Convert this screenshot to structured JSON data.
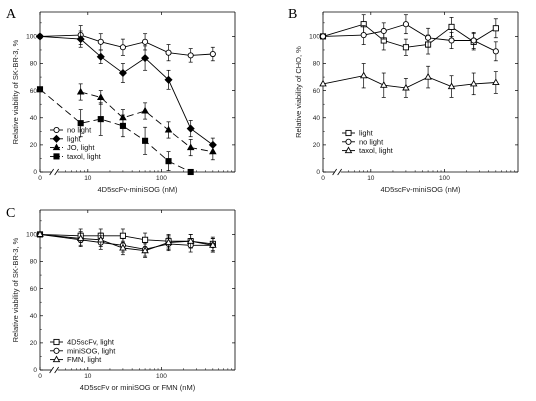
{
  "chart_data": [
    {
      "panel": "A",
      "type": "line",
      "xlabel": "4D5scFv-miniSOG (nM)",
      "ylabel": "Relative viability of SK-BR-3, %",
      "x_ticks": [
        0,
        10,
        100
      ],
      "y_ticks": [
        0,
        20,
        40,
        60,
        80,
        100
      ],
      "ylim": [
        0,
        118
      ],
      "x_scale": "log with axis break",
      "legend_position": "bottom-left",
      "series": [
        {
          "name": "no light",
          "marker": "open-circle",
          "line": "solid",
          "x": [
            0,
            8,
            15,
            30,
            60,
            125,
            250,
            500
          ],
          "y": [
            100,
            101,
            96,
            92,
            96,
            88,
            86,
            87
          ],
          "err": [
            0,
            7,
            6,
            6,
            6,
            6,
            5,
            5
          ]
        },
        {
          "name": "light",
          "marker": "filled-diamond",
          "line": "solid",
          "x": [
            0,
            8,
            15,
            30,
            60,
            125,
            250,
            500
          ],
          "y": [
            100,
            98,
            85,
            73,
            84,
            68,
            32,
            20
          ],
          "err": [
            0,
            6,
            5,
            7,
            9,
            7,
            6,
            5
          ]
        },
        {
          "name": "JO, light",
          "marker": "filled-triangle",
          "line": "dashed",
          "x": [
            8,
            15,
            30,
            60,
            125,
            250,
            500
          ],
          "y": [
            59,
            55,
            40,
            45,
            31,
            18,
            15
          ],
          "err": [
            6,
            5,
            6,
            6,
            6,
            6,
            6
          ]
        },
        {
          "name": "taxol, light",
          "marker": "filled-square",
          "line": "dashed",
          "x": [
            0,
            8,
            15,
            30,
            60,
            125,
            250
          ],
          "y": [
            61,
            36,
            39,
            34,
            23,
            8,
            0
          ],
          "err": [
            0,
            10,
            12,
            8,
            10,
            7,
            0
          ]
        }
      ]
    },
    {
      "panel": "B",
      "type": "line",
      "xlabel": "4D5scFv-miniSOG (nM)",
      "ylabel": "Relative viability of CHO, %",
      "x_ticks": [
        0,
        10,
        100
      ],
      "y_ticks": [
        0,
        20,
        40,
        60,
        80,
        100
      ],
      "ylim": [
        0,
        118
      ],
      "x_scale": "log with axis break",
      "legend_position": "bottom-left",
      "series": [
        {
          "name": "light",
          "marker": "open-square",
          "line": "solid",
          "x": [
            0,
            8,
            15,
            30,
            60,
            125,
            250,
            500
          ],
          "y": [
            100,
            109,
            97,
            92,
            94,
            107,
            96,
            106
          ],
          "err": [
            0,
            7,
            7,
            6,
            7,
            7,
            6,
            7
          ]
        },
        {
          "name": "no light",
          "marker": "open-circle",
          "line": "solid",
          "x": [
            0,
            8,
            15,
            30,
            60,
            125,
            250,
            500
          ],
          "y": [
            100,
            101,
            104,
            109,
            99,
            97,
            97,
            89
          ],
          "err": [
            0,
            7,
            6,
            7,
            7,
            6,
            6,
            7
          ]
        },
        {
          "name": "taxol, light",
          "marker": "open-triangle",
          "line": "solid",
          "x": [
            0,
            8,
            15,
            30,
            60,
            125,
            250,
            500
          ],
          "y": [
            65,
            71,
            64,
            62,
            70,
            63,
            65,
            66
          ],
          "err": [
            0,
            9,
            9,
            7,
            8,
            8,
            8,
            8
          ]
        }
      ]
    },
    {
      "panel": "C",
      "type": "line",
      "xlabel": "4D5scFv or miniSOG or FMN (nM)",
      "ylabel": "Relative viability of SK-BR-3, %",
      "x_ticks": [
        0,
        10,
        100
      ],
      "y_ticks": [
        0,
        20,
        40,
        60,
        80,
        100
      ],
      "ylim": [
        0,
        118
      ],
      "x_scale": "log with axis break",
      "legend_position": "bottom-left",
      "series": [
        {
          "name": "4D5scFv, light",
          "marker": "open-square",
          "line": "solid",
          "x": [
            0,
            8,
            15,
            30,
            60,
            125,
            250,
            500
          ],
          "y": [
            100,
            99,
            99,
            99,
            96,
            95,
            95,
            93
          ],
          "err": [
            0,
            5,
            5,
            5,
            5,
            5,
            5,
            5
          ]
        },
        {
          "name": "miniSOG, light",
          "marker": "open-circle",
          "line": "solid",
          "x": [
            0,
            8,
            15,
            30,
            60,
            125,
            250,
            500
          ],
          "y": [
            100,
            96,
            94,
            92,
            89,
            93,
            92,
            92
          ],
          "err": [
            0,
            5,
            5,
            5,
            5,
            5,
            5,
            5
          ]
        },
        {
          "name": "FMN, light",
          "marker": "open-triangle",
          "line": "solid",
          "x": [
            0,
            8,
            15,
            30,
            60,
            125,
            250,
            500
          ],
          "y": [
            100,
            97,
            96,
            90,
            88,
            94,
            95,
            92
          ],
          "err": [
            0,
            5,
            5,
            5,
            5,
            5,
            5,
            5
          ]
        }
      ]
    }
  ]
}
